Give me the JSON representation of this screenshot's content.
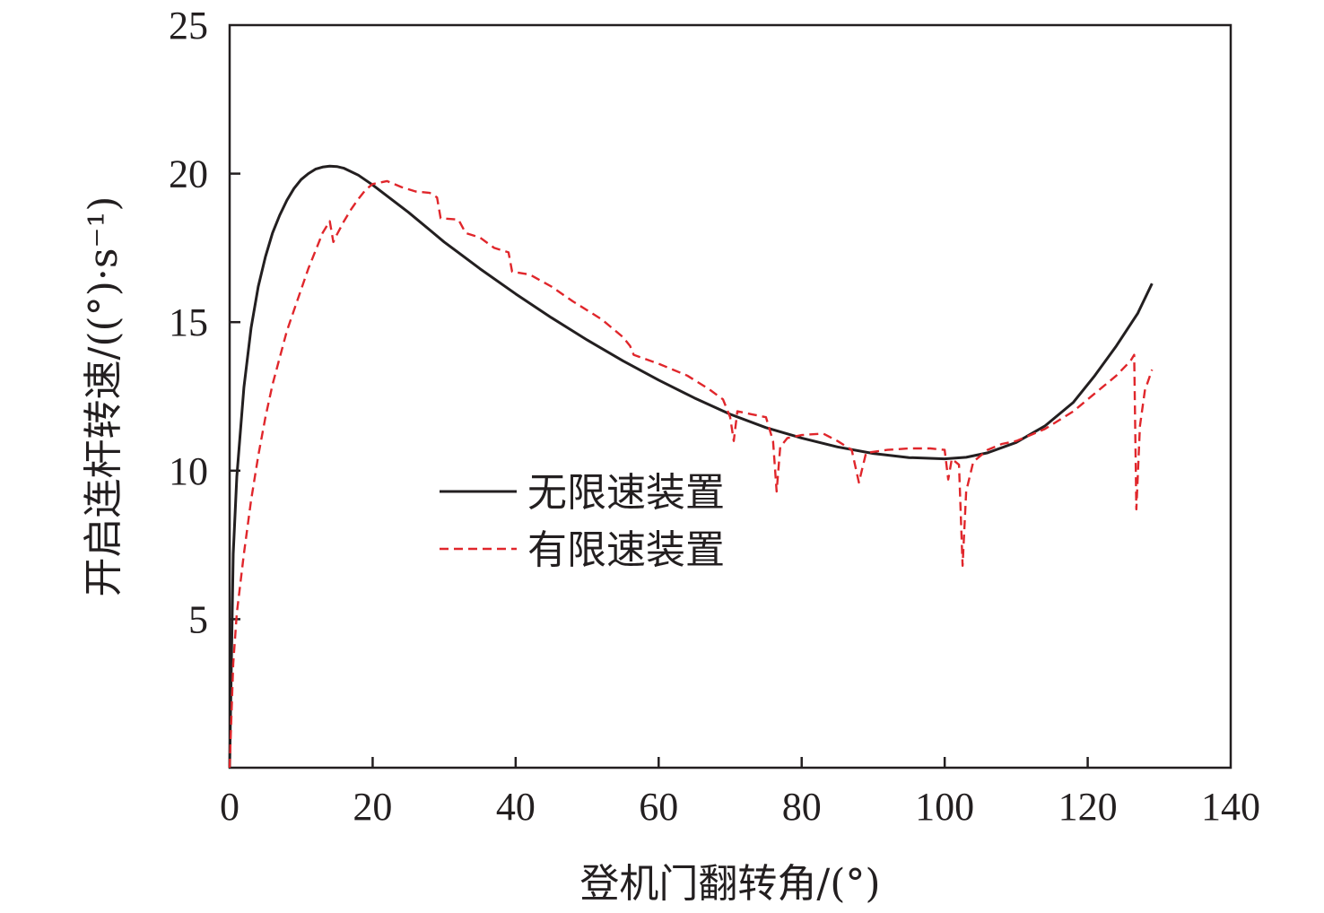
{
  "chart_data": {
    "type": "line",
    "xlabel": "登机门翻转角/(°)",
    "ylabel": "开启连杆转速/((°)·s⁻¹)",
    "xlim": [
      0,
      140
    ],
    "ylim": [
      0,
      25
    ],
    "xticks": [
      0,
      20,
      40,
      60,
      80,
      100,
      120,
      140
    ],
    "yticks": [
      5,
      10,
      15,
      20,
      25
    ],
    "grid": false,
    "legend_position": "center",
    "series": [
      {
        "name": "无限速装置",
        "color": "#231f20",
        "style": "solid",
        "points": [
          [
            0,
            0
          ],
          [
            0.5,
            7.2
          ],
          [
            1,
            9.8
          ],
          [
            2,
            12.8
          ],
          [
            3,
            14.8
          ],
          [
            4,
            16.2
          ],
          [
            5,
            17.2
          ],
          [
            6,
            18.0
          ],
          [
            7,
            18.6
          ],
          [
            8,
            19.1
          ],
          [
            9,
            19.5
          ],
          [
            10,
            19.8
          ],
          [
            11,
            20.0
          ],
          [
            12,
            20.15
          ],
          [
            13,
            20.22
          ],
          [
            14,
            20.25
          ],
          [
            15,
            20.24
          ],
          [
            16,
            20.18
          ],
          [
            18,
            19.95
          ],
          [
            20,
            19.62
          ],
          [
            22,
            19.25
          ],
          [
            25,
            18.7
          ],
          [
            28,
            18.1
          ],
          [
            30,
            17.7
          ],
          [
            35,
            16.8
          ],
          [
            40,
            15.95
          ],
          [
            45,
            15.15
          ],
          [
            50,
            14.4
          ],
          [
            55,
            13.7
          ],
          [
            60,
            13.05
          ],
          [
            65,
            12.45
          ],
          [
            70,
            11.9
          ],
          [
            75,
            11.45
          ],
          [
            80,
            11.1
          ],
          [
            85,
            10.8
          ],
          [
            90,
            10.58
          ],
          [
            95,
            10.44
          ],
          [
            100,
            10.4
          ],
          [
            103,
            10.45
          ],
          [
            106,
            10.6
          ],
          [
            110,
            10.95
          ],
          [
            114,
            11.5
          ],
          [
            118,
            12.3
          ],
          [
            121,
            13.2
          ],
          [
            124,
            14.2
          ],
          [
            127,
            15.3
          ],
          [
            129,
            16.3
          ]
        ]
      },
      {
        "name": "有限速装置",
        "color": "#e0262b",
        "style": "dashed",
        "points": [
          [
            0,
            0
          ],
          [
            0.5,
            3.5
          ],
          [
            1,
            5.2
          ],
          [
            2,
            7.2
          ],
          [
            3,
            9.0
          ],
          [
            4,
            10.5
          ],
          [
            5,
            11.8
          ],
          [
            6,
            12.9
          ],
          [
            7,
            13.8
          ],
          [
            8,
            14.7
          ],
          [
            9,
            15.4
          ],
          [
            10,
            16.1
          ],
          [
            11,
            16.8
          ],
          [
            12,
            17.4
          ],
          [
            13,
            18.0
          ],
          [
            14,
            18.4
          ],
          [
            14.5,
            17.7
          ],
          [
            15,
            17.95
          ],
          [
            16,
            18.4
          ],
          [
            17,
            18.8
          ],
          [
            18,
            19.15
          ],
          [
            19,
            19.45
          ],
          [
            20,
            19.65
          ],
          [
            22,
            19.75
          ],
          [
            24,
            19.55
          ],
          [
            26,
            19.4
          ],
          [
            28,
            19.35
          ],
          [
            29,
            19.2
          ],
          [
            29.5,
            18.5
          ],
          [
            32,
            18.45
          ],
          [
            33,
            18.0
          ],
          [
            35,
            17.85
          ],
          [
            37,
            17.5
          ],
          [
            39,
            17.35
          ],
          [
            39.5,
            16.7
          ],
          [
            42,
            16.6
          ],
          [
            45,
            16.2
          ],
          [
            48,
            15.7
          ],
          [
            52,
            15.1
          ],
          [
            55,
            14.5
          ],
          [
            56,
            14.2
          ],
          [
            56.5,
            13.9
          ],
          [
            60,
            13.6
          ],
          [
            64,
            13.2
          ],
          [
            67,
            12.75
          ],
          [
            69,
            12.4
          ],
          [
            70,
            11.8
          ],
          [
            70.5,
            11.0
          ],
          [
            71,
            12.0
          ],
          [
            73,
            11.9
          ],
          [
            75,
            11.8
          ],
          [
            76,
            11.0
          ],
          [
            76.5,
            9.3
          ],
          [
            77,
            10.8
          ],
          [
            78,
            11.1
          ],
          [
            80,
            11.2
          ],
          [
            83,
            11.25
          ],
          [
            85,
            11.0
          ],
          [
            87,
            10.7
          ],
          [
            88,
            9.6
          ],
          [
            89,
            10.6
          ],
          [
            92,
            10.7
          ],
          [
            95,
            10.75
          ],
          [
            98,
            10.75
          ],
          [
            100,
            10.7
          ],
          [
            100.5,
            9.7
          ],
          [
            101,
            10.4
          ],
          [
            102,
            10.2
          ],
          [
            102.5,
            6.8
          ],
          [
            103,
            9.3
          ],
          [
            104,
            10.3
          ],
          [
            106,
            10.7
          ],
          [
            108,
            10.9
          ],
          [
            110,
            11.0
          ],
          [
            112,
            11.2
          ],
          [
            114,
            11.4
          ],
          [
            116,
            11.7
          ],
          [
            118,
            12.0
          ],
          [
            120,
            12.4
          ],
          [
            122,
            12.8
          ],
          [
            124,
            13.2
          ],
          [
            126,
            13.7
          ],
          [
            126.5,
            13.9
          ],
          [
            126.8,
            8.7
          ],
          [
            127.3,
            11.5
          ],
          [
            128,
            12.7
          ],
          [
            129,
            13.4
          ]
        ]
      }
    ]
  }
}
